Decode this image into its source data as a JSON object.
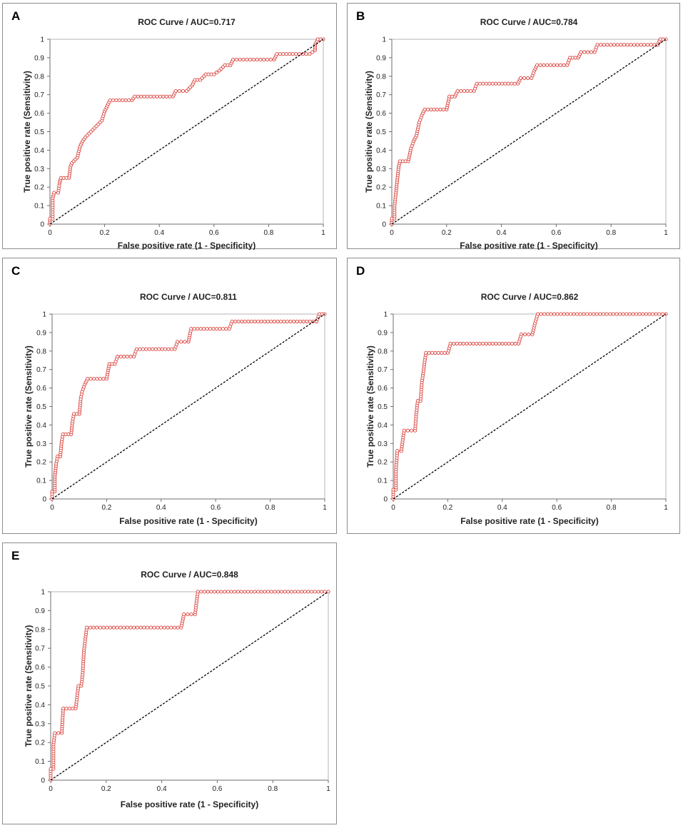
{
  "figure": {
    "panels": [
      {
        "id": "A",
        "title": "ROC Curve / AUC=0.717"
      },
      {
        "id": "B",
        "title": "ROC Curve / AUC=0.784"
      },
      {
        "id": "C",
        "title": "ROC Curve  / AUC=0.811"
      },
      {
        "id": "D",
        "title": "ROC Curve  / AUC=0.862"
      },
      {
        "id": "E",
        "title": "ROC Curve  / AUC=0.848"
      }
    ]
  },
  "chart_data": [
    {
      "panel": "A",
      "type": "line",
      "title": "ROC Curve / AUC=0.717",
      "xlabel": "False positive rate (1 - Specificity)",
      "ylabel": "True positive rate (Sensitivity)",
      "xlim": [
        0,
        1
      ],
      "ylim": [
        0,
        1
      ],
      "xticks": [
        "0",
        "0.2",
        "0.4",
        "0.6",
        "0.8",
        "1"
      ],
      "yticks": [
        "0",
        "0.1",
        "0.2",
        "0.3",
        "0.4",
        "0.5",
        "0.6",
        "0.7",
        "0.8",
        "0.9",
        "1"
      ],
      "series": [
        {
          "name": "ROC",
          "color": "#d9413b",
          "points": [
            [
              0,
              0
            ],
            [
              0,
              0.03
            ],
            [
              0.01,
              0.03
            ],
            [
              0.01,
              0.08
            ],
            [
              0.01,
              0.14
            ],
            [
              0.015,
              0.17
            ],
            [
              0.03,
              0.17
            ],
            [
              0.035,
              0.22
            ],
            [
              0.04,
              0.25
            ],
            [
              0.07,
              0.25
            ],
            [
              0.075,
              0.31
            ],
            [
              0.08,
              0.33
            ],
            [
              0.1,
              0.36
            ],
            [
              0.11,
              0.42
            ],
            [
              0.12,
              0.45
            ],
            [
              0.13,
              0.47
            ],
            [
              0.15,
              0.5
            ],
            [
              0.17,
              0.53
            ],
            [
              0.19,
              0.56
            ],
            [
              0.2,
              0.61
            ],
            [
              0.21,
              0.64
            ],
            [
              0.22,
              0.67
            ],
            [
              0.3,
              0.67
            ],
            [
              0.31,
              0.69
            ],
            [
              0.45,
              0.69
            ],
            [
              0.46,
              0.72
            ],
            [
              0.5,
              0.72
            ],
            [
              0.52,
              0.75
            ],
            [
              0.53,
              0.78
            ],
            [
              0.55,
              0.78
            ],
            [
              0.57,
              0.81
            ],
            [
              0.6,
              0.81
            ],
            [
              0.62,
              0.83
            ],
            [
              0.64,
              0.86
            ],
            [
              0.66,
              0.86
            ],
            [
              0.67,
              0.89
            ],
            [
              0.82,
              0.89
            ],
            [
              0.83,
              0.92
            ],
            [
              0.9,
              0.92
            ],
            [
              0.95,
              0.92
            ],
            [
              0.97,
              0.94
            ],
            [
              0.97,
              0.97
            ],
            [
              0.98,
              1
            ],
            [
              1,
              1
            ]
          ]
        },
        {
          "name": "Chance",
          "color": "#000000",
          "dashed": true,
          "points": [
            [
              0,
              0
            ],
            [
              1,
              1
            ]
          ]
        }
      ]
    },
    {
      "panel": "B",
      "type": "line",
      "title": "ROC Curve / AUC=0.784",
      "xlabel": "False positive rate (1 - Specificity)",
      "ylabel": "True positive rate (Sensitivity)",
      "xlim": [
        0,
        1
      ],
      "ylim": [
        0,
        1
      ],
      "xticks": [
        "0",
        "0.2",
        "0.4",
        "0.6",
        "0.8",
        "1"
      ],
      "yticks": [
        "0",
        "0.1",
        "0.2",
        "0.3",
        "0.4",
        "0.5",
        "0.6",
        "0.7",
        "0.8",
        "0.9",
        "1"
      ],
      "series": [
        {
          "name": "ROC",
          "color": "#d9413b",
          "points": [
            [
              0,
              0
            ],
            [
              0,
              0.03
            ],
            [
              0.01,
              0.03
            ],
            [
              0.01,
              0.1
            ],
            [
              0.015,
              0.17
            ],
            [
              0.02,
              0.24
            ],
            [
              0.025,
              0.31
            ],
            [
              0.03,
              0.34
            ],
            [
              0.06,
              0.34
            ],
            [
              0.07,
              0.41
            ],
            [
              0.08,
              0.45
            ],
            [
              0.09,
              0.48
            ],
            [
              0.1,
              0.55
            ],
            [
              0.11,
              0.59
            ],
            [
              0.12,
              0.62
            ],
            [
              0.2,
              0.62
            ],
            [
              0.21,
              0.69
            ],
            [
              0.23,
              0.69
            ],
            [
              0.24,
              0.72
            ],
            [
              0.3,
              0.72
            ],
            [
              0.31,
              0.76
            ],
            [
              0.46,
              0.76
            ],
            [
              0.47,
              0.79
            ],
            [
              0.51,
              0.79
            ],
            [
              0.52,
              0.83
            ],
            [
              0.53,
              0.86
            ],
            [
              0.64,
              0.86
            ],
            [
              0.65,
              0.9
            ],
            [
              0.68,
              0.9
            ],
            [
              0.69,
              0.93
            ],
            [
              0.74,
              0.93
            ],
            [
              0.75,
              0.97
            ],
            [
              0.97,
              0.97
            ],
            [
              0.98,
              1
            ],
            [
              1,
              1
            ]
          ]
        },
        {
          "name": "Chance",
          "color": "#000000",
          "dashed": true,
          "points": [
            [
              0,
              0
            ],
            [
              1,
              1
            ]
          ]
        }
      ]
    },
    {
      "panel": "C",
      "type": "line",
      "title": "ROC Curve  / AUC=0.811",
      "xlabel": "False positive rate (1 - Specificity)",
      "ylabel": "True positive rate (Sensitivity)",
      "xlim": [
        0,
        1
      ],
      "ylim": [
        0,
        1
      ],
      "xticks": [
        "0",
        "0.2",
        "0.4",
        "0.6",
        "0.8",
        "1"
      ],
      "yticks": [
        "0",
        "0.1",
        "0.2",
        "0.3",
        "0.4",
        "0.5",
        "0.6",
        "0.7",
        "0.8",
        "0.9",
        "1"
      ],
      "series": [
        {
          "name": "ROC",
          "color": "#d9413b",
          "points": [
            [
              0,
              0
            ],
            [
              0,
              0.04
            ],
            [
              0.01,
              0.04
            ],
            [
              0.01,
              0.12
            ],
            [
              0.015,
              0.19
            ],
            [
              0.02,
              0.23
            ],
            [
              0.03,
              0.23
            ],
            [
              0.035,
              0.31
            ],
            [
              0.04,
              0.35
            ],
            [
              0.07,
              0.35
            ],
            [
              0.075,
              0.42
            ],
            [
              0.08,
              0.46
            ],
            [
              0.1,
              0.46
            ],
            [
              0.105,
              0.54
            ],
            [
              0.11,
              0.58
            ],
            [
              0.12,
              0.62
            ],
            [
              0.13,
              0.65
            ],
            [
              0.2,
              0.65
            ],
            [
              0.21,
              0.73
            ],
            [
              0.23,
              0.73
            ],
            [
              0.24,
              0.77
            ],
            [
              0.3,
              0.77
            ],
            [
              0.31,
              0.81
            ],
            [
              0.45,
              0.81
            ],
            [
              0.46,
              0.85
            ],
            [
              0.5,
              0.85
            ],
            [
              0.51,
              0.92
            ],
            [
              0.65,
              0.92
            ],
            [
              0.66,
              0.96
            ],
            [
              0.97,
              0.96
            ],
            [
              0.98,
              1
            ],
            [
              1,
              1
            ]
          ]
        },
        {
          "name": "Chance",
          "color": "#000000",
          "dashed": true,
          "points": [
            [
              0,
              0
            ],
            [
              1,
              1
            ]
          ]
        }
      ]
    },
    {
      "panel": "D",
      "type": "line",
      "title": "ROC Curve  / AUC=0.862",
      "xlabel": "False positive rate (1 - Specificity)",
      "ylabel": "True positive rate (Sensitivity)",
      "xlim": [
        0,
        1
      ],
      "ylim": [
        0,
        1
      ],
      "xticks": [
        "0",
        "0.2",
        "0.4",
        "0.6",
        "0.8",
        "1"
      ],
      "yticks": [
        "0",
        "0.1",
        "0.2",
        "0.3",
        "0.4",
        "0.5",
        "0.6",
        "0.7",
        "0.8",
        "0.9",
        "1"
      ],
      "series": [
        {
          "name": "ROC",
          "color": "#d9413b",
          "points": [
            [
              0,
              0
            ],
            [
              0,
              0.05
            ],
            [
              0.01,
              0.05
            ],
            [
              0.01,
              0.16
            ],
            [
              0.015,
              0.26
            ],
            [
              0.03,
              0.26
            ],
            [
              0.035,
              0.32
            ],
            [
              0.04,
              0.37
            ],
            [
              0.08,
              0.37
            ],
            [
              0.085,
              0.47
            ],
            [
              0.09,
              0.53
            ],
            [
              0.1,
              0.53
            ],
            [
              0.105,
              0.63
            ],
            [
              0.11,
              0.68
            ],
            [
              0.115,
              0.74
            ],
            [
              0.12,
              0.79
            ],
            [
              0.2,
              0.79
            ],
            [
              0.21,
              0.84
            ],
            [
              0.46,
              0.84
            ],
            [
              0.47,
              0.89
            ],
            [
              0.51,
              0.89
            ],
            [
              0.52,
              0.95
            ],
            [
              0.53,
              1
            ],
            [
              1,
              1
            ]
          ]
        },
        {
          "name": "Chance",
          "color": "#000000",
          "dashed": true,
          "points": [
            [
              0,
              0
            ],
            [
              1,
              1
            ]
          ]
        }
      ]
    },
    {
      "panel": "E",
      "type": "line",
      "title": "ROC Curve  / AUC=0.848",
      "xlabel": "False positive rate (1 - Specificity)",
      "ylabel": "True positive rate (Sensitivity)",
      "xlim": [
        0,
        1
      ],
      "ylim": [
        0,
        1
      ],
      "xticks": [
        "0",
        "0.2",
        "0.4",
        "0.6",
        "0.8",
        "1"
      ],
      "yticks": [
        "0",
        "0.1",
        "0.2",
        "0.3",
        "0.4",
        "0.5",
        "0.6",
        "0.7",
        "0.8",
        "0.9",
        "1"
      ],
      "series": [
        {
          "name": "ROC",
          "color": "#d9413b",
          "points": [
            [
              0,
              0
            ],
            [
              0,
              0.06
            ],
            [
              0.01,
              0.06
            ],
            [
              0.01,
              0.19
            ],
            [
              0.015,
              0.25
            ],
            [
              0.04,
              0.25
            ],
            [
              0.045,
              0.38
            ],
            [
              0.09,
              0.38
            ],
            [
              0.095,
              0.44
            ],
            [
              0.1,
              0.5
            ],
            [
              0.11,
              0.5
            ],
            [
              0.115,
              0.56
            ],
            [
              0.12,
              0.69
            ],
            [
              0.125,
              0.75
            ],
            [
              0.13,
              0.81
            ],
            [
              0.47,
              0.81
            ],
            [
              0.48,
              0.88
            ],
            [
              0.52,
              0.88
            ],
            [
              0.525,
              0.94
            ],
            [
              0.53,
              1
            ],
            [
              1,
              1
            ]
          ]
        },
        {
          "name": "Chance",
          "color": "#000000",
          "dashed": true,
          "points": [
            [
              0,
              0
            ],
            [
              1,
              1
            ]
          ]
        }
      ]
    }
  ]
}
